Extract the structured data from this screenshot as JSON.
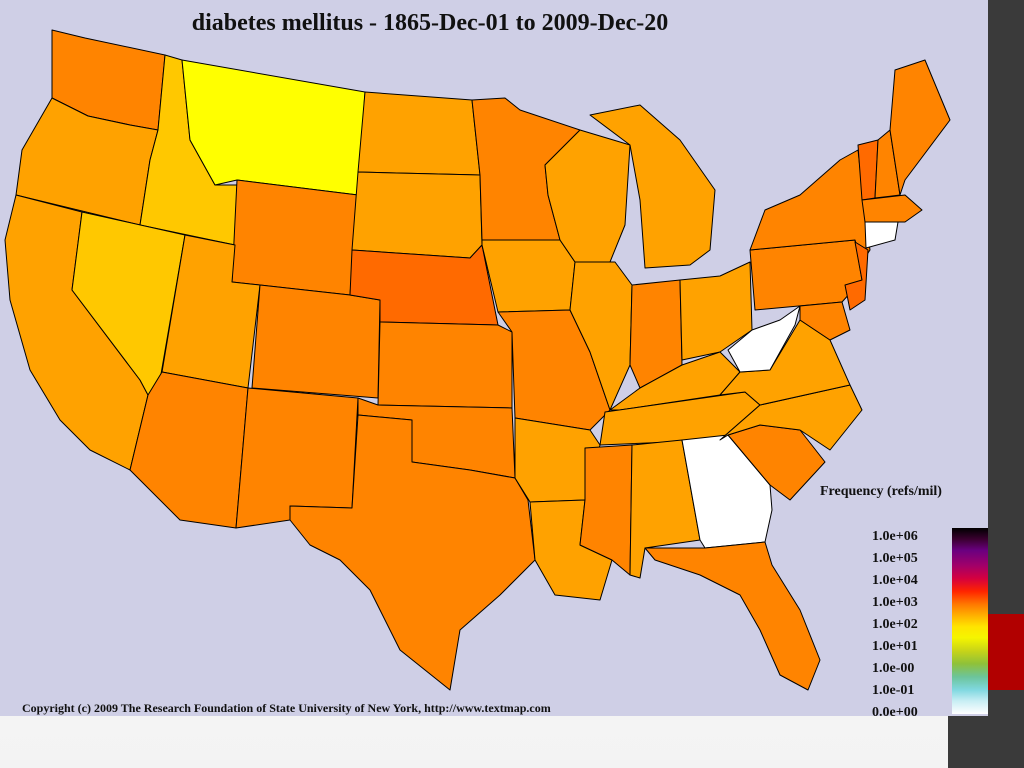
{
  "map": {
    "title": "diabetes mellitus - 1865-Dec-01 to 2009-Dec-20",
    "copyright": "Copyright (c) 2009 The Research Foundation of State University of New York, http://www.textmap.com",
    "background_color": "#cfcfe6"
  },
  "legend": {
    "title": "Frequency (refs/mil)",
    "labels": [
      "1.0e+06",
      "1.0e+05",
      "1.0e+04",
      "1.0e+03",
      "1.0e+02",
      "1.0e+01",
      "1.0e-00",
      "1.0e-01",
      "0.0e+00"
    ]
  },
  "colors": {
    "high": "#ff6a00",
    "mid_high": "#ff8400",
    "mid": "#ffa200",
    "low_mid": "#ffc800",
    "low": "#ffff00",
    "none": "#ffffff"
  }
}
